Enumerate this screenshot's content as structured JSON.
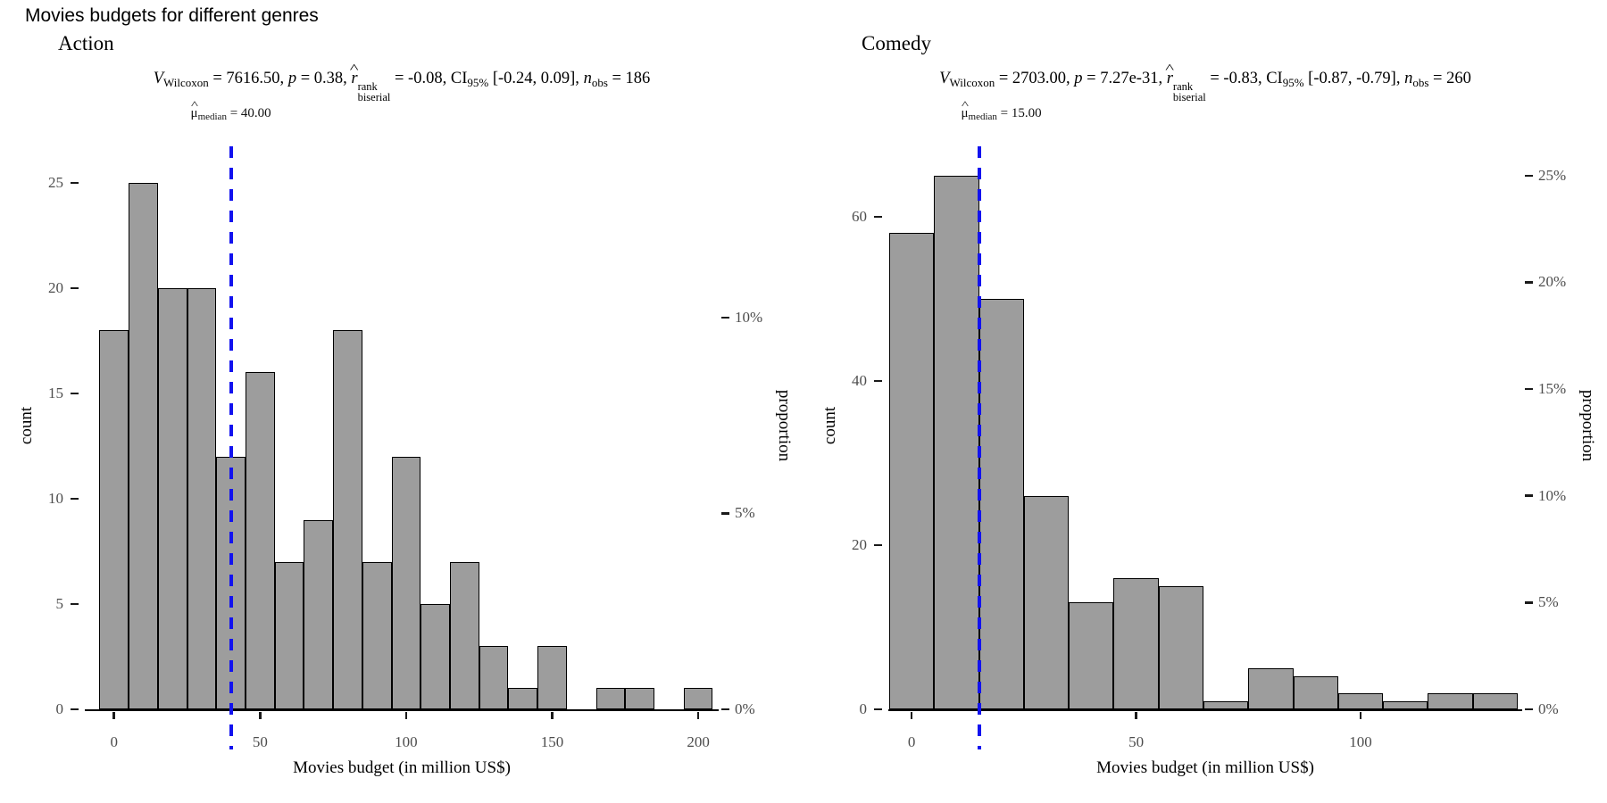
{
  "page": {
    "title": "Movies budgets for different genres"
  },
  "labels": {
    "V": "V",
    "Wilcoxon": "Wilcoxon",
    "p": "p",
    "r": "r",
    "hat": "^",
    "rank": "rank",
    "biserial": "biserial",
    "CI": "CI",
    "ci_sub": "95%",
    "n": "n",
    "obs": "obs",
    "mu": "μ",
    "median_sub": "median"
  },
  "style": {
    "bar_fill": "#9d9d9d",
    "bar_stroke": "#000000",
    "median_line_color": "#1212ef",
    "tick_label_color": "#4d4d4d",
    "axis_color": "#000000",
    "background": "#ffffff"
  },
  "chart_data": [
    {
      "type": "histogram",
      "panel_title": "Action",
      "stats": {
        "v_eq": " = 7616.50, ",
        "p_eq": " = 0.38, ",
        "r_eq": " = -0.08, ",
        "ci_vals": " [-0.24, 0.09], ",
        "n_eq": " = 186"
      },
      "median": 40,
      "median_eq": " = 40.00",
      "median_label_offset": 0,
      "n_obs": 186,
      "bin_start": -5,
      "bin_width": 10,
      "counts": [
        18,
        25,
        20,
        20,
        12,
        16,
        7,
        9,
        18,
        7,
        12,
        5,
        7,
        3,
        1,
        3,
        0,
        1,
        1,
        0,
        1
      ],
      "x_ticks": [
        0,
        50,
        100,
        150,
        200
      ],
      "y_ticks": [
        0,
        5,
        10,
        15,
        20,
        25
      ],
      "pct_ticks": [
        0,
        5,
        10
      ],
      "xlim": [
        -10,
        207
      ],
      "ylim": [
        0,
        26.9
      ],
      "xlabel": "Movies budget (in million US$)",
      "ylabel": "count",
      "y2label": "proportion",
      "grid": false,
      "legend": "none"
    },
    {
      "type": "histogram",
      "panel_title": "Comedy",
      "stats": {
        "v_eq": " = 2703.00, ",
        "p_eq": " = 7.27e-31, ",
        "r_eq": " = -0.83, ",
        "ci_vals": " [-0.87, -0.79], ",
        "n_eq": " = 260"
      },
      "median": 15,
      "median_eq": " = 15.00",
      "median_label_offset": 25,
      "n_obs": 260,
      "bin_start": -5,
      "bin_width": 10,
      "counts": [
        58,
        65,
        50,
        26,
        13,
        16,
        15,
        1,
        5,
        4,
        2,
        1,
        2,
        2
      ],
      "x_ticks": [
        0,
        50,
        100
      ],
      "y_ticks": [
        0,
        20,
        40,
        60
      ],
      "pct_ticks": [
        0,
        5,
        10,
        15,
        20,
        25
      ],
      "xlim": [
        -5.2,
        136
      ],
      "ylim": [
        0,
        69
      ],
      "xlabel": "Movies budget (in million US$)",
      "ylabel": "count",
      "y2label": "proportion",
      "grid": false,
      "legend": "none"
    }
  ]
}
